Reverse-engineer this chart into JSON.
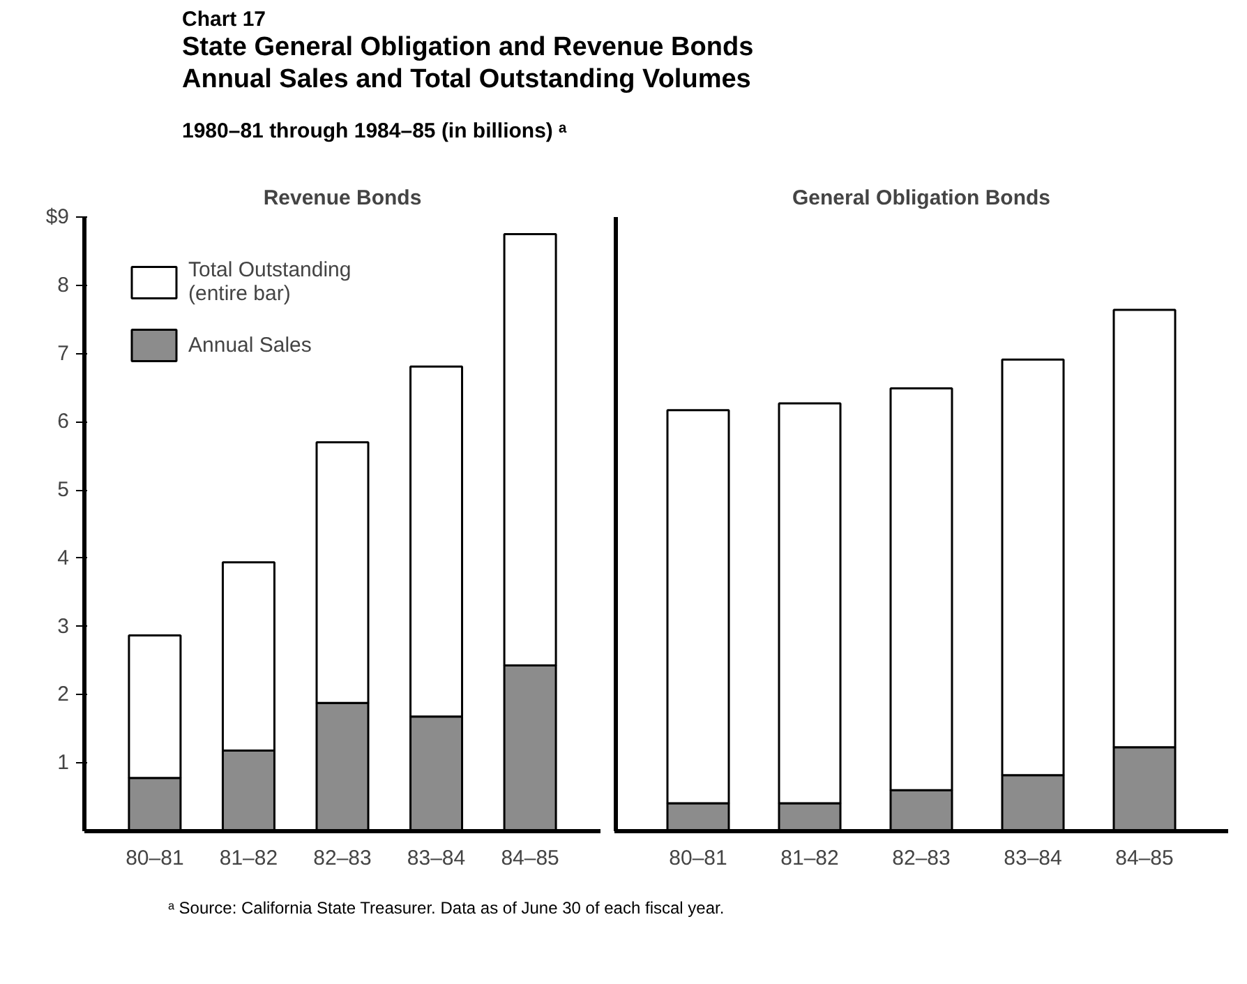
{
  "chart_data": [
    {
      "type": "bar",
      "stacked": true,
      "title": "Revenue Bonds",
      "categories": [
        "80–81",
        "81–82",
        "82–83",
        "83–84",
        "84–85"
      ],
      "series": [
        {
          "name": "Annual Sales",
          "color": "#8c8c8c",
          "values": [
            0.78,
            1.18,
            1.88,
            1.68,
            2.43
          ]
        },
        {
          "name": "Total Outstanding\n(entire bar)",
          "color": "#ffffff",
          "values": [
            2.09,
            2.76,
            3.82,
            5.13,
            6.32
          ]
        }
      ],
      "ylim": [
        0,
        9
      ],
      "yticks": [
        1,
        2,
        3,
        4,
        5,
        6,
        7,
        8,
        {
          "value": 9,
          "label": "$9"
        }
      ],
      "grid": false,
      "legend": "top left",
      "annotations": [
        "Chart 17",
        "State General Obligation and Revenue Bonds\nAnnual Sales and Total Outstanding Volumes",
        "1980–81 through 1984–85 (in billions) ᵃ",
        "ᵃ Source:  California State Treasurer.    Data as of June 30 of each fiscal year."
      ]
    },
    {
      "type": "bar",
      "stacked": true,
      "title": "General Obligation Bonds",
      "categories": [
        "80–81",
        "81–82",
        "82–83",
        "83–84",
        "84–85"
      ],
      "series": [
        {
          "color": "#8c8c8c",
          "values": [
            0.41,
            0.41,
            0.6,
            0.82,
            1.23
          ]
        },
        {
          "color": "#ffffff",
          "values": [
            5.76,
            5.86,
            5.89,
            6.09,
            6.41
          ]
        }
      ],
      "ylim": [
        0,
        9
      ],
      "grid": false,
      "tick_labels": "x"
    }
  ]
}
